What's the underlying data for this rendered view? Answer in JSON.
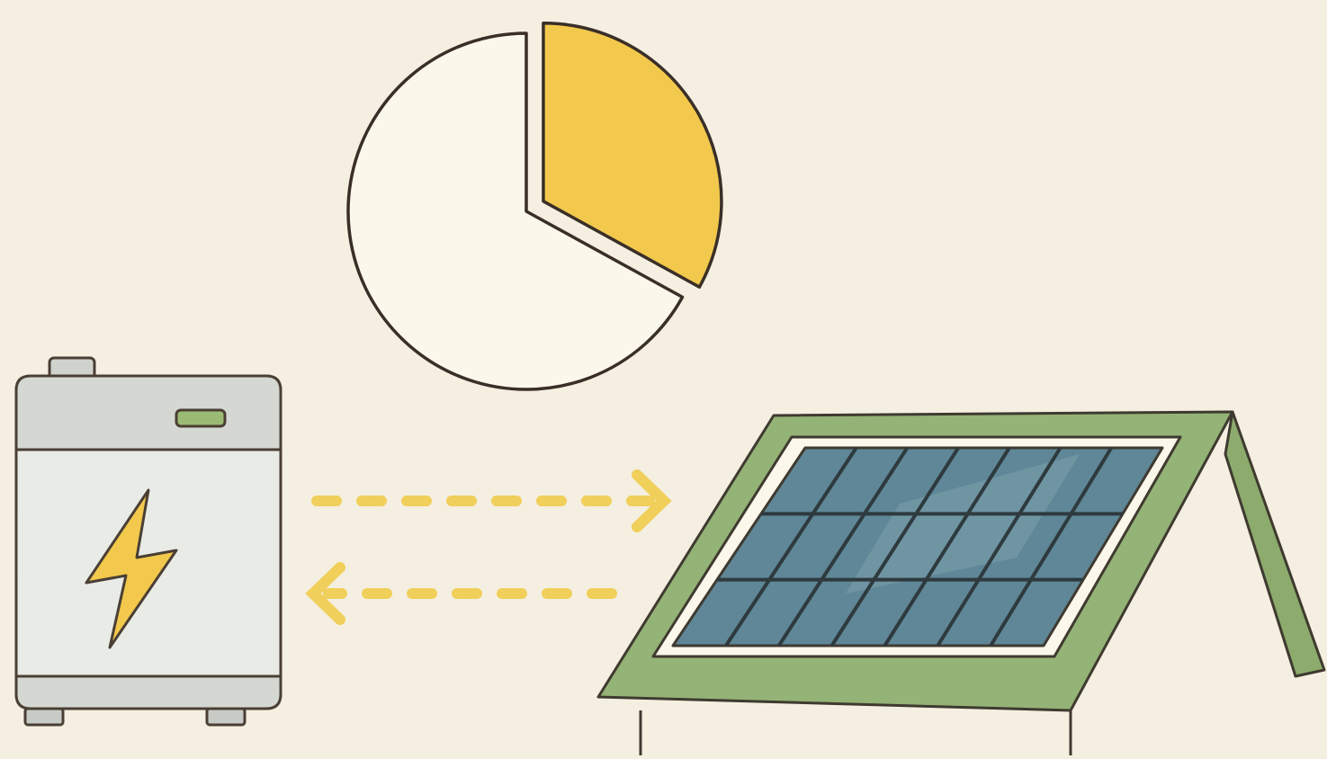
{
  "chart_data": {
    "type": "pie",
    "values": [
      33,
      67
    ],
    "colors": [
      "#f2c94c",
      "#fbf7ea"
    ]
  }
}
